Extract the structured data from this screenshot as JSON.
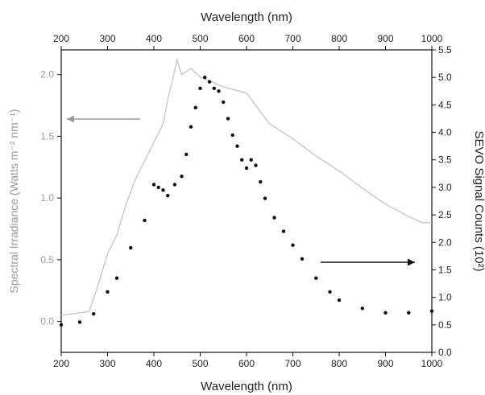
{
  "chart_data": {
    "type": "scatter",
    "x_axis_bottom": {
      "label": "Wavelength (nm)",
      "range": [
        200,
        1000
      ],
      "ticks": [
        "200",
        "300",
        "400",
        "500",
        "600",
        "700",
        "800",
        "900",
        "1000"
      ]
    },
    "x_axis_top": {
      "label": "Wavelength (nm)",
      "range": [
        200,
        1000
      ],
      "ticks": [
        "200",
        "300",
        "400",
        "500",
        "600",
        "700",
        "800",
        "900",
        "1000"
      ]
    },
    "y_axis_left": {
      "label": "Spectral Irradiance (Watts m⁻² nm⁻¹)",
      "range": [
        -0.25,
        2.2
      ],
      "ticks": [
        "0.0",
        "0.5",
        "1.0",
        "1.5",
        "2.0"
      ],
      "color": "#9a9a9a"
    },
    "y_axis_right": {
      "label": "SEVO Signal Counts (10²)",
      "range": [
        0,
        5.5
      ],
      "ticks": [
        "0.0",
        "0.5",
        "1.0",
        "1.5",
        "2.0",
        "2.5",
        "3.0",
        "3.5",
        "4.0",
        "4.5",
        "5.0",
        "5.5"
      ],
      "color": "#111111"
    },
    "series": [
      {
        "axis": "left",
        "style": "line",
        "color": "#c4c4c4",
        "x": [
          200,
          260,
          280,
          300,
          320,
          340,
          360,
          380,
          400,
          420,
          430,
          440,
          450,
          460,
          480,
          500,
          520,
          550,
          600,
          650,
          700,
          750,
          800,
          850,
          900,
          950,
          980,
          1000
        ],
        "y": [
          0.05,
          0.08,
          0.3,
          0.55,
          0.7,
          0.95,
          1.15,
          1.3,
          1.45,
          1.6,
          1.8,
          1.95,
          2.12,
          2.0,
          2.05,
          1.98,
          1.95,
          1.9,
          1.85,
          1.6,
          1.48,
          1.34,
          1.22,
          1.08,
          0.95,
          0.85,
          0.8,
          0.8
        ]
      },
      {
        "axis": "right",
        "style": "points",
        "color": "#111111",
        "x": [
          200,
          240,
          270,
          300,
          320,
          350,
          380,
          400,
          410,
          420,
          430,
          445,
          460,
          470,
          480,
          490,
          500,
          510,
          520,
          530,
          540,
          550,
          560,
          570,
          580,
          590,
          600,
          610,
          620,
          630,
          640,
          660,
          680,
          700,
          720,
          750,
          780,
          800,
          850,
          900,
          950,
          1000
        ],
        "y": [
          0.5,
          0.55,
          0.7,
          1.1,
          1.35,
          1.9,
          2.4,
          3.05,
          3.0,
          2.95,
          2.85,
          3.05,
          3.2,
          3.6,
          4.1,
          4.45,
          4.8,
          5.0,
          4.92,
          4.8,
          4.75,
          4.55,
          4.25,
          3.95,
          3.75,
          3.5,
          3.35,
          3.5,
          3.4,
          3.1,
          2.8,
          2.45,
          2.2,
          1.95,
          1.7,
          1.35,
          1.1,
          0.95,
          0.8,
          0.72,
          0.72,
          0.75
        ]
      }
    ]
  }
}
